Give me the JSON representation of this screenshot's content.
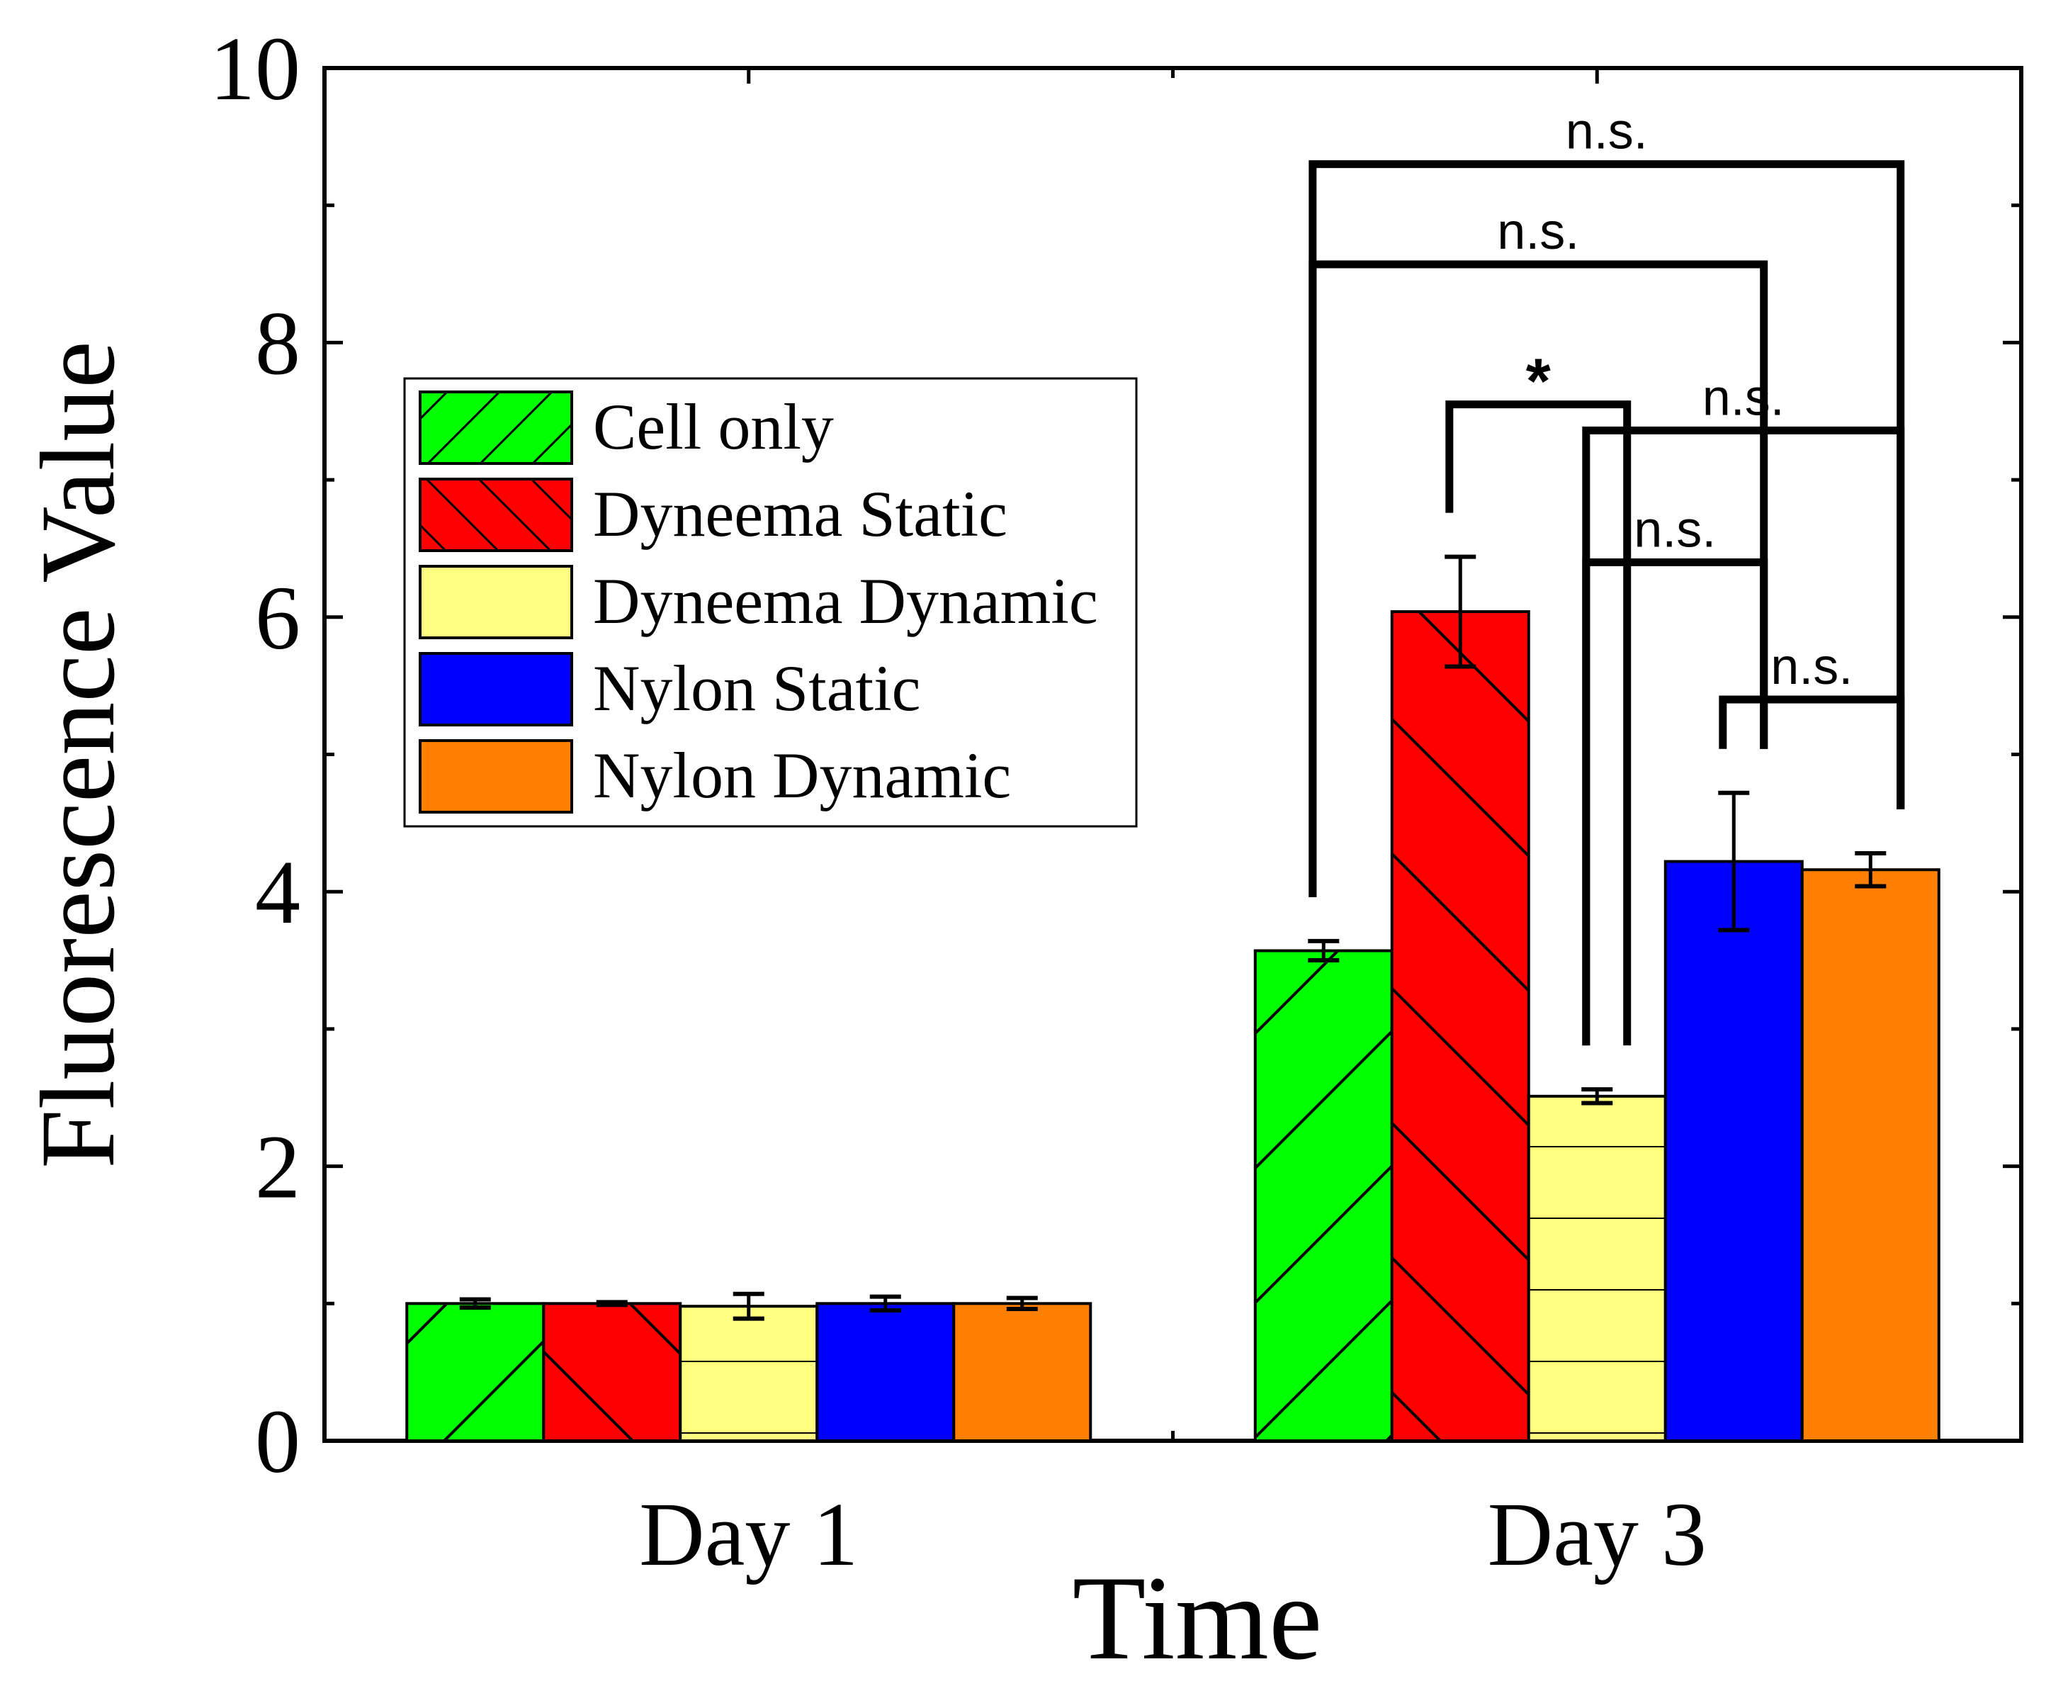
{
  "chart_data": {
    "type": "bar",
    "title": "",
    "xlabel": "Time",
    "ylabel": "Fluorescence Value",
    "ylim": [
      0,
      10
    ],
    "yticks": [
      "0",
      "2",
      "4",
      "6",
      "8",
      "10"
    ],
    "categories": [
      "Day 1",
      "Day 3"
    ],
    "legend_position": "top-left",
    "series": [
      {
        "name": "Cell only",
        "color": "#00ff00",
        "pattern": "forward-diagonal",
        "values": [
          1.0,
          3.57
        ],
        "errors": [
          0.03,
          0.07
        ]
      },
      {
        "name": "Dyneema Static",
        "color": "#ff0000",
        "pattern": "backward-diagonal",
        "values": [
          1.0,
          6.04
        ],
        "errors": [
          0.01,
          0.4
        ]
      },
      {
        "name": "Dyneema Dynamic",
        "color": "#ffff80",
        "pattern": "horizontal",
        "values": [
          0.98,
          2.51
        ],
        "errors": [
          0.09,
          0.05
        ]
      },
      {
        "name": "Nylon Static",
        "color": "#0000ff",
        "pattern": "none",
        "values": [
          1.0,
          4.22
        ],
        "errors": [
          0.05,
          0.5
        ]
      },
      {
        "name": "Nylon Dynamic",
        "color": "#ff8000",
        "pattern": "none",
        "values": [
          1.0,
          4.16
        ],
        "errors": [
          0.04,
          0.12
        ]
      }
    ],
    "annotations": [
      {
        "label": "n.s.",
        "from_series": 0,
        "to_series": 4,
        "category": "Day 3",
        "y": 9.3
      },
      {
        "label": "n.s.",
        "from_series": 0,
        "to_series": 3,
        "category": "Day 3",
        "y": 8.57
      },
      {
        "label": "*",
        "from_series": 1,
        "to_series": 2,
        "category": "Day 3",
        "y": 7.55
      },
      {
        "label": "n.s.",
        "from_series": 2,
        "to_series": 4,
        "category": "Day 3",
        "y": 7.36
      },
      {
        "label": "n.s.",
        "from_series": 2,
        "to_series": 3,
        "category": "Day 3",
        "y": 6.4
      },
      {
        "label": "n.s.",
        "from_series": 3,
        "to_series": 4,
        "category": "Day 3",
        "y": 5.4
      }
    ]
  }
}
